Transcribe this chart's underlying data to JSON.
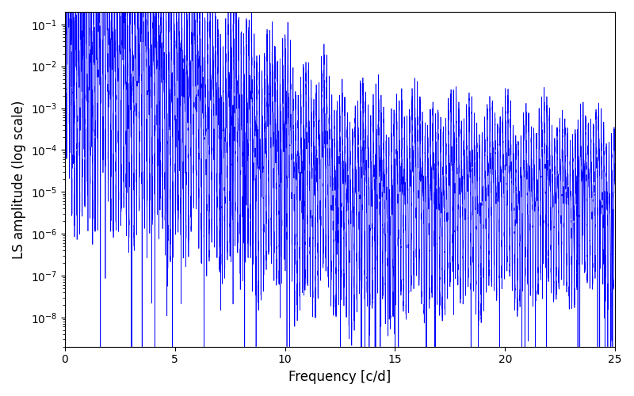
{
  "xlabel": "Frequency [c/d]",
  "ylabel": "LS amplitude (log scale)",
  "line_color": "#0000ff",
  "xlim": [
    0,
    25
  ],
  "ylim_log": [
    -8.7,
    -0.7
  ],
  "freq_max": 25.0,
  "background_color": "#ffffff",
  "figsize": [
    8.0,
    5.0
  ],
  "dpi": 100,
  "seed": 17
}
